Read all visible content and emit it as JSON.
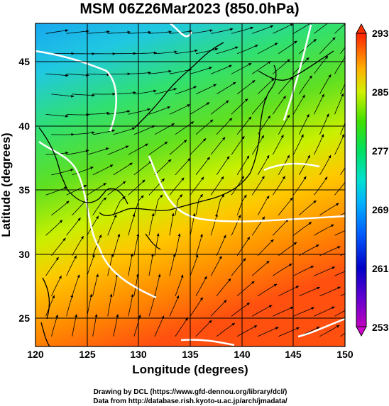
{
  "chart_data": {
    "type": "heatmap",
    "title": "MSM 06Z26Mar2023 (850.0hPa)",
    "xlabel": "Longitude (degrees)",
    "ylabel": "Latitude  (degrees)",
    "xlim": [
      120,
      150
    ],
    "ylim": [
      22.4,
      47.6
    ],
    "x_ticks": [
      120,
      125,
      130,
      135,
      140,
      145,
      150
    ],
    "y_ticks": [
      25,
      30,
      35,
      40,
      45
    ],
    "x_tick_labels": [
      "120",
      "125",
      "130",
      "135",
      "140",
      "145",
      "150"
    ],
    "y_tick_labels": [
      "25",
      "30",
      "35",
      "40",
      "45"
    ],
    "colorbar": {
      "min": 253,
      "max": 293,
      "ticks": [
        253,
        261,
        269,
        277,
        285,
        293
      ],
      "tick_labels": [
        "253",
        "261",
        "269",
        "277",
        "285",
        "293"
      ],
      "colors": [
        "#c000c0",
        "#0000c8",
        "#0080ff",
        "#00d8f0",
        "#00e070",
        "#40e000",
        "#d8f000",
        "#ffd000",
        "#ff8000",
        "#ff3000"
      ]
    },
    "grid": true,
    "field_description": "temperature (K) with streamlines and white contour lines"
  },
  "credits": {
    "line1": "Drawing by DCL (https://www.gfd-dennou.org/library/dcl/)",
    "line2": "Data from http://database.rish.kyoto-u.ac.jp/arch/jmadata/"
  }
}
